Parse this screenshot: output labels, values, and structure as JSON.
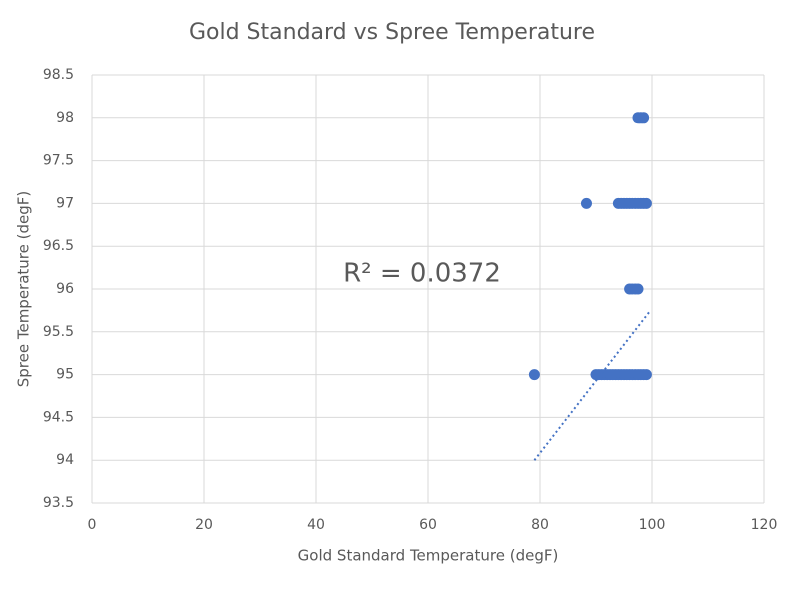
{
  "chart_data": {
    "type": "scatter",
    "title": "Gold Standard vs Spree Temperature",
    "x_label": "Gold Standard Temperature (degF)",
    "y_label": "Spree Temperature (degF)",
    "x": [
      97.5,
      98,
      98.5,
      88.3,
      94,
      94.5,
      95,
      95.5,
      96,
      96.5,
      97,
      97.5,
      98,
      98.5,
      99,
      96,
      96.5,
      97,
      97.5,
      79,
      90,
      90.5,
      91,
      91.5,
      92,
      92.5,
      93,
      93.5,
      94,
      94.5,
      95,
      95.5,
      96,
      96.5,
      97,
      97.5,
      98,
      98.5,
      99
    ],
    "y": [
      98,
      98,
      98,
      97,
      97,
      97,
      97,
      97,
      97,
      97,
      97,
      97,
      97,
      97,
      97,
      96,
      96,
      96,
      96,
      95,
      95,
      95,
      95,
      95,
      95,
      95,
      95,
      95,
      95,
      95,
      95,
      95,
      95,
      95,
      95,
      95,
      95,
      95,
      95
    ],
    "color": "#4472c4",
    "trendline": {
      "x": [
        79,
        99.5
      ],
      "y": [
        94,
        95.73
      ],
      "annotation": "R² = 0.0372"
    },
    "xlim": [
      0,
      120
    ],
    "xticks": [
      0,
      20,
      40,
      60,
      80,
      100,
      120
    ],
    "ylim": [
      93.5,
      98.5
    ],
    "yticks": [
      93.5,
      94,
      94.5,
      95,
      95.5,
      96,
      96.5,
      97,
      97.5,
      98,
      98.5
    ],
    "grid": true
  }
}
